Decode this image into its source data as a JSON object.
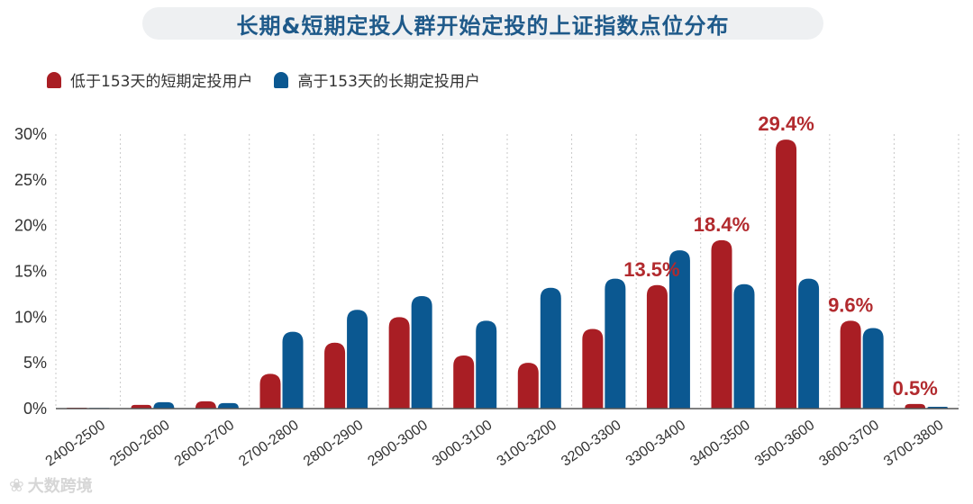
{
  "title": "长期&短期定投人群开始定投的上证指数点位分布",
  "colors": {
    "short": "#a91e24",
    "long": "#0b5891",
    "label": "#b22a2e",
    "grid": "#c9c9c9",
    "axis": "#555555"
  },
  "legend": {
    "short": "低于153天的短期定投用户",
    "long": "高于153天的长期定投用户"
  },
  "watermark": {
    "icon": "sprout-icon",
    "text": "大数跨境"
  },
  "chart_data": {
    "type": "bar",
    "categories": [
      "2400-2500",
      "2500-2600",
      "2600-2700",
      "2700-2800",
      "2800-2900",
      "2900-3000",
      "3000-3100",
      "3100-3200",
      "3200-3300",
      "3300-3400",
      "3400-3500",
      "3500-3600",
      "3600-3700",
      "3700-3800"
    ],
    "series": [
      {
        "name": "低于153天的短期定投用户",
        "key": "short",
        "values": [
          0.1,
          0.4,
          0.8,
          3.8,
          7.2,
          10.0,
          5.8,
          5.0,
          8.7,
          13.5,
          18.4,
          29.4,
          9.6,
          0.5
        ]
      },
      {
        "name": "高于153天的长期定投用户",
        "key": "long",
        "values": [
          0.05,
          0.7,
          0.6,
          8.4,
          10.8,
          12.3,
          9.6,
          13.2,
          14.2,
          17.3,
          13.6,
          14.2,
          8.8,
          0.2
        ]
      }
    ],
    "data_labels": [
      {
        "category_index": 9,
        "text": "13.5%"
      },
      {
        "category_index": 10,
        "text": "18.4%"
      },
      {
        "category_index": 11,
        "text": "29.4%"
      },
      {
        "category_index": 12,
        "text": "9.6%"
      },
      {
        "category_index": 13,
        "text": "0.5%"
      }
    ],
    "y_ticks": [
      "0%",
      "5%",
      "10%",
      "15%",
      "20%",
      "25%",
      "30%"
    ],
    "ylim": [
      0,
      30
    ],
    "grid": "vertical dotted"
  }
}
